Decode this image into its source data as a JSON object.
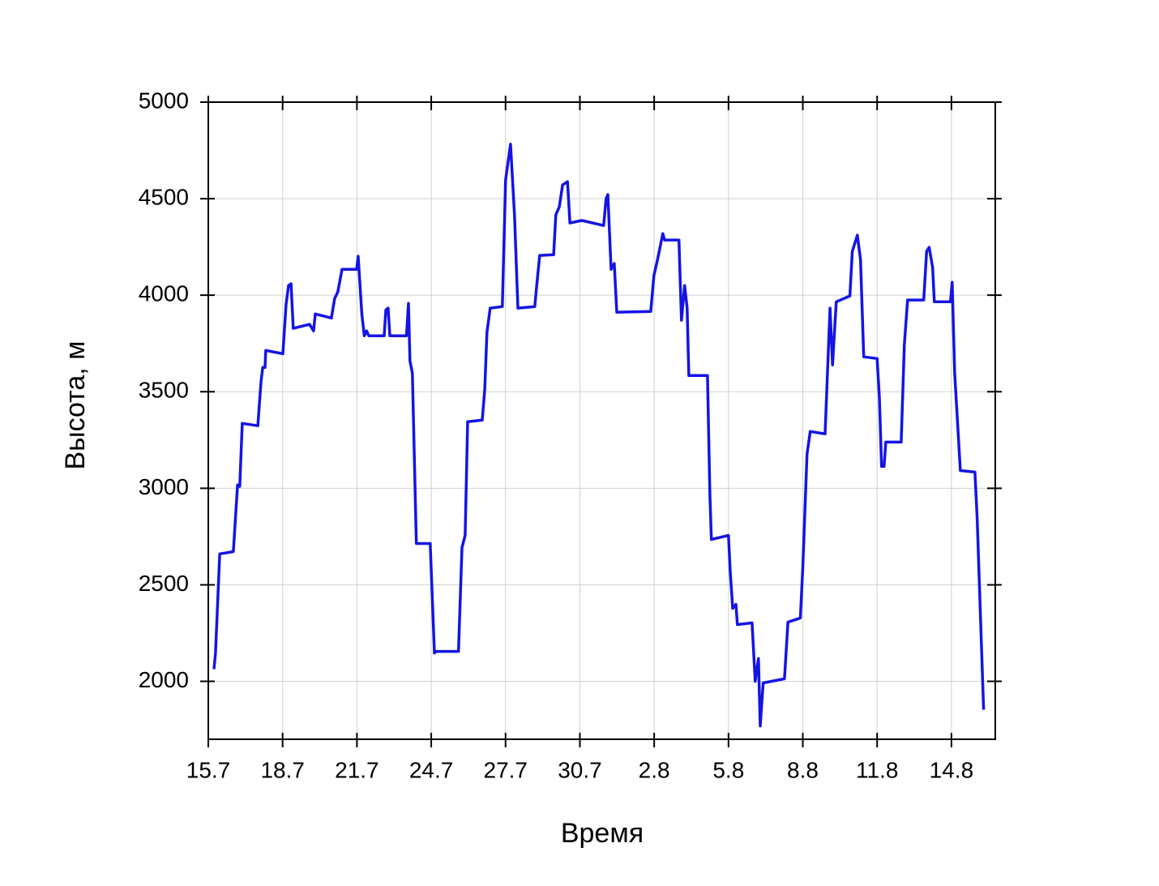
{
  "chart_data": {
    "type": "line",
    "x_label": "Время",
    "y_label": "Высота, м",
    "xlim": [
      0,
      31.77
    ],
    "ylim": [
      1700,
      5000
    ],
    "xticks": [
      {
        "value": 0,
        "label": "15.7"
      },
      {
        "value": 3,
        "label": "18.7"
      },
      {
        "value": 6,
        "label": "21.7"
      },
      {
        "value": 9,
        "label": "24.7"
      },
      {
        "value": 12,
        "label": "27.7"
      },
      {
        "value": 15,
        "label": "30.7"
      },
      {
        "value": 18,
        "label": "2.8"
      },
      {
        "value": 21,
        "label": "5.8"
      },
      {
        "value": 24,
        "label": "8.8"
      },
      {
        "value": 27,
        "label": "11.8"
      },
      {
        "value": 30,
        "label": "14.8"
      }
    ],
    "yticks": [
      2000,
      2500,
      3000,
      3500,
      4000,
      4500,
      5000
    ],
    "grid": true,
    "series": [
      {
        "name": "Высота",
        "color": "#1414e6",
        "x": [
          0.23,
          0.29,
          0.46,
          1.01,
          1.18,
          1.27,
          1.37,
          2.0,
          2.13,
          2.2,
          2.29,
          2.32,
          3.01,
          3.14,
          3.24,
          3.34,
          3.43,
          4.09,
          4.25,
          4.32,
          4.97,
          5.1,
          5.23,
          5.4,
          5.99,
          6.05,
          6.2,
          6.3,
          6.39,
          6.48,
          7.1,
          7.17,
          7.26,
          7.33,
          8.0,
          8.08,
          8.14,
          8.24,
          8.4,
          8.96,
          9.13,
          9.2,
          10.1,
          10.24,
          10.37,
          10.47,
          11.06,
          11.16,
          11.25,
          11.38,
          11.87,
          12.0,
          12.2,
          12.36,
          12.5,
          13.18,
          13.28,
          13.38,
          13.94,
          14.03,
          14.17,
          14.3,
          14.5,
          14.6,
          15.08,
          15.96,
          16.06,
          16.13,
          16.26,
          16.39,
          16.49,
          17.86,
          17.99,
          18.15,
          18.35,
          18.42,
          19.0,
          19.1,
          19.23,
          19.33,
          19.4,
          20.15,
          20.25,
          20.31,
          21.0,
          21.07,
          21.17,
          21.3,
          21.36,
          21.95,
          22.08,
          22.21,
          22.28,
          22.4,
          23.26,
          23.4,
          23.9,
          24.0,
          24.17,
          24.3,
          24.9,
          25.1,
          25.2,
          25.35,
          25.9,
          26.0,
          26.2,
          26.33,
          26.46,
          27.0,
          27.09,
          27.18,
          27.28,
          27.35,
          27.97,
          28.1,
          28.23,
          28.88,
          29.0,
          29.1,
          29.24,
          29.31,
          29.96,
          30.03,
          30.13,
          30.36,
          30.95,
          31.04,
          31.3
        ],
        "values": [
          2063,
          2147,
          2660,
          2672,
          3017,
          3010,
          3336,
          3324,
          3555,
          3626,
          3626,
          3714,
          3697,
          3954,
          4050,
          4059,
          3828,
          3849,
          3815,
          3903,
          3882,
          3983,
          4017,
          4134,
          4134,
          4202,
          3899,
          3790,
          3815,
          3790,
          3790,
          3924,
          3933,
          3790,
          3790,
          3958,
          3660,
          3597,
          2714,
          2714,
          2147,
          2155,
          2155,
          2693,
          2756,
          3345,
          3353,
          3513,
          3807,
          3933,
          3941,
          4597,
          4782,
          4416,
          3933,
          3941,
          4080,
          4206,
          4210,
          4416,
          4458,
          4571,
          4588,
          4374,
          4387,
          4361,
          4500,
          4521,
          4134,
          4164,
          3912,
          3916,
          4101,
          4193,
          4319,
          4286,
          4286,
          3870,
          4050,
          3933,
          3584,
          3584,
          2966,
          2735,
          2756,
          2567,
          2378,
          2399,
          2294,
          2303,
          2000,
          2118,
          1769,
          1992,
          2013,
          2307,
          2328,
          2588,
          3176,
          3294,
          3282,
          3933,
          3639,
          3966,
          3996,
          4227,
          4311,
          4185,
          3681,
          3672,
          3471,
          3113,
          3113,
          3239,
          3239,
          3744,
          3975,
          3975,
          4227,
          4248,
          4143,
          3966,
          3966,
          4067,
          3597,
          3092,
          3084,
          2840,
          1853
        ]
      }
    ]
  }
}
